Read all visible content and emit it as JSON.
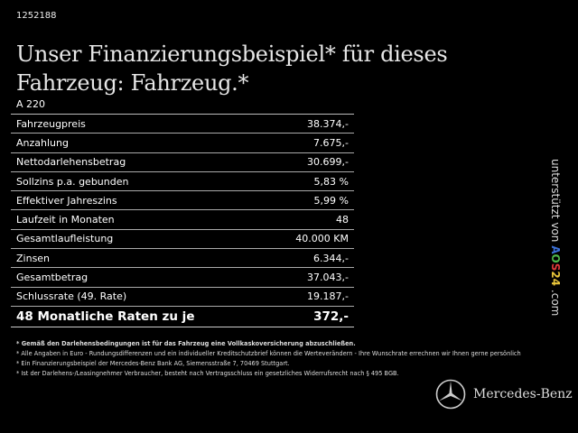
{
  "vehicle_id": "1252188",
  "title": "Unser Finanzierungsbeispiel* für dieses Fahrzeug: Fahrzeug.*",
  "model": "A 220",
  "rows": [
    {
      "label": "Fahrzeugpreis",
      "value": "38.374,-"
    },
    {
      "label": "Anzahlung",
      "value": "7.675,-"
    },
    {
      "label": "Nettodarlehensbetrag",
      "value": "30.699,-"
    },
    {
      "label": "Sollzins p.a. gebunden",
      "value": "5,83 %"
    },
    {
      "label": "Effektiver Jahreszins",
      "value": "5,99 %"
    },
    {
      "label": "Laufzeit in Monaten",
      "value": "48"
    },
    {
      "label": "Gesamtlaufleistung",
      "value": "40.000 KM"
    },
    {
      "label": "Zinsen",
      "value": "6.344,-"
    },
    {
      "label": "Gesamtbetrag",
      "value": "37.043,-"
    },
    {
      "label": "Schlussrate (49. Rate)",
      "value": "19.187,-"
    }
  ],
  "total": {
    "label": "48 Monatliche Raten zu je",
    "value": "372,-"
  },
  "notes": [
    "* Gemäß den Darlehensbedingungen ist für das Fahrzeug eine Vollkaskoversicherung abzuschließen.",
    "* Alle Angaben in Euro - Rundungsdifferenzen und ein individueller Kreditschutzbrief können die Werteverändern - Ihre Wunschrate errechnen wir Ihnen gerne persönlich",
    "* Ein Finanzierungsbeispiel der Mercedes-Benz Bank AG, Siemensstraße 7, 70469 Stuttgart.",
    "* Ist der Darlehens-/Leasingnehmer Verbraucher, besteht nach Vertragsschluss ein gesetzliches Widerrufsrecht nach § 495 BGB."
  ],
  "sidebar": {
    "prefix": "unterstützt von",
    "brand_letters": [
      {
        "ch": "A",
        "color": "#3b6fd6"
      },
      {
        "ch": "O",
        "color": "#4fb84a"
      },
      {
        "ch": "S",
        "color": "#e03a3a"
      },
      {
        "ch": "2",
        "color": "#e8c53a"
      },
      {
        "ch": "4",
        "color": "#e8c53a"
      }
    ],
    "suffix": ".com"
  },
  "brand": {
    "name": "Mercedes-Benz",
    "icon": "mercedes-star-icon"
  }
}
